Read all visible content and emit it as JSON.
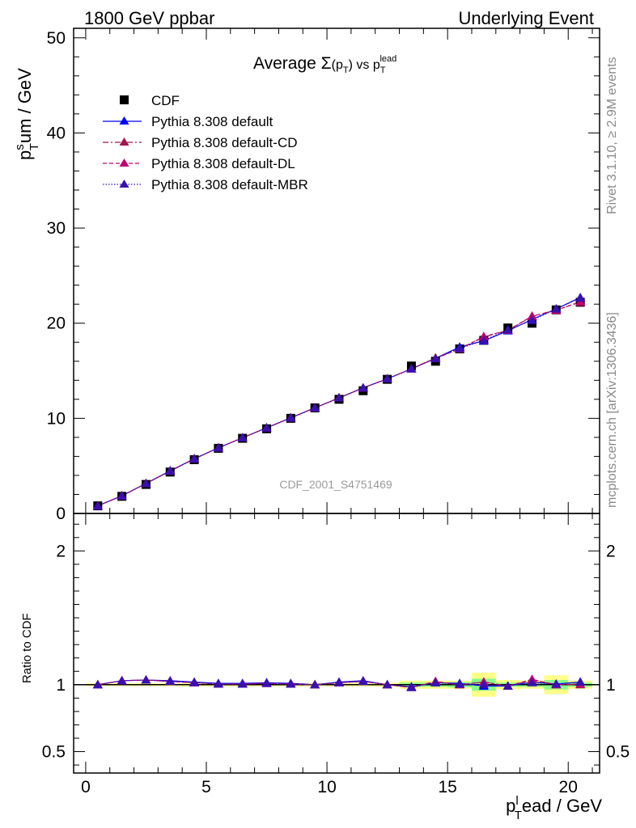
{
  "header": {
    "left": "1800 GeV ppbar",
    "right": "Underlying Event"
  },
  "side_labels": {
    "rivet": "Rivet 3.1.10, ≥ 2.9M events",
    "mcplots": "mcplots.cern.ch [arXiv:1306.3436]"
  },
  "watermark": "CDF_2001_S4751469",
  "colors": {
    "cdf": "#000000",
    "default": "#0000ff",
    "cd": "#a0164e",
    "dl": "#c0006f",
    "mbr": "#3a10b0",
    "band_green": "#88ff88",
    "band_yellow": "#ffff88"
  },
  "chart_data": [
    {
      "type": "scatter",
      "title": {
        "pre": "Average ",
        "sym": "Σ",
        "open": "(p",
        "sub1": "T",
        "close": ")",
        "mid": " vs p",
        "sub2": "T",
        "sup2": "lead"
      },
      "ylabel": {
        "main": "p",
        "sup": "s",
        "sub": "T",
        "rest": "um / GeV"
      },
      "xlim": [
        -0.5,
        21.3
      ],
      "ylim": [
        0,
        51
      ],
      "yticks": [
        0,
        10,
        20,
        30,
        40,
        50
      ],
      "ytick_labels": [
        "0",
        "10",
        "20",
        "30",
        "40",
        "50"
      ],
      "legend_position": "top-left",
      "x": [
        0.5,
        1.5,
        2.5,
        3.5,
        4.5,
        5.5,
        6.5,
        7.5,
        8.5,
        9.5,
        10.5,
        11.5,
        12.5,
        13.5,
        14.5,
        15.5,
        16.5,
        17.5,
        18.5,
        19.5,
        20.5
      ],
      "series": [
        {
          "name": "CDF",
          "marker": "square",
          "values": [
            0.8,
            1.8,
            3.05,
            4.35,
            5.65,
            6.85,
            7.9,
            8.9,
            10.0,
            11.1,
            12.0,
            12.9,
            14.1,
            15.5,
            16.0,
            17.3,
            18.2,
            19.5,
            20.0,
            21.4,
            22.2
          ]
        },
        {
          "name": "Pythia 8.308 default",
          "marker": "triangle",
          "line": "solid",
          "values": [
            0.8,
            1.85,
            3.15,
            4.5,
            5.75,
            6.9,
            7.95,
            9.0,
            10.05,
            11.1,
            12.15,
            13.2,
            14.15,
            15.2,
            16.3,
            17.5,
            18.15,
            19.2,
            20.4,
            21.5,
            22.7
          ]
        },
        {
          "name": "Pythia 8.308 default-CD",
          "marker": "triangle",
          "line": "dashdot",
          "values": [
            0.8,
            1.85,
            3.15,
            4.45,
            5.75,
            6.9,
            7.95,
            9.0,
            10.05,
            11.1,
            12.15,
            13.2,
            14.15,
            15.2,
            16.35,
            17.3,
            18.55,
            19.25,
            20.7,
            21.4,
            22.2
          ]
        },
        {
          "name": "Pythia 8.308 default-DL",
          "marker": "triangle",
          "line": "dashed",
          "values": [
            0.8,
            1.85,
            3.15,
            4.45,
            5.75,
            6.9,
            7.95,
            9.0,
            10.05,
            11.1,
            12.15,
            13.2,
            14.15,
            15.2,
            16.3,
            17.3,
            18.6,
            19.25,
            20.75,
            21.35,
            22.25
          ]
        },
        {
          "name": "Pythia 8.308 default-MBR",
          "marker": "triangle",
          "line": "dotted",
          "values": [
            0.8,
            1.85,
            3.15,
            4.45,
            5.75,
            6.9,
            7.95,
            9.0,
            10.05,
            11.1,
            12.15,
            13.2,
            14.15,
            15.2,
            16.3,
            17.35,
            18.2,
            19.3,
            20.3,
            21.5,
            22.65
          ]
        }
      ]
    },
    {
      "type": "scatter",
      "ylabel": "Ratio to CDF",
      "xlabel": {
        "main": "p",
        "sup": "l",
        "sub": "T",
        "rest": "ead / GeV"
      },
      "xlim": [
        -0.5,
        21.3
      ],
      "ylim": [
        0.34,
        2.28
      ],
      "yticks": [
        0.5,
        1,
        2
      ],
      "ytick_labels": [
        "0.5",
        "1",
        "2"
      ],
      "xticks": [
        0,
        5,
        10,
        15,
        20
      ],
      "xtick_labels": [
        "0",
        "5",
        "10",
        "15",
        "20"
      ],
      "x": [
        0.5,
        1.5,
        2.5,
        3.5,
        4.5,
        5.5,
        6.5,
        7.5,
        8.5,
        9.5,
        10.5,
        11.5,
        12.5,
        13.5,
        14.5,
        15.5,
        16.5,
        17.5,
        18.5,
        19.5,
        20.5
      ],
      "band": {
        "green": [
          0.004,
          0.004,
          0.004,
          0.004,
          0.004,
          0.004,
          0.004,
          0.004,
          0.004,
          0.004,
          0.004,
          0.004,
          0.004,
          0.015,
          0.015,
          0.02,
          0.045,
          0.015,
          0.015,
          0.035,
          0.015
        ],
        "yellow": [
          0.01,
          0.01,
          0.01,
          0.01,
          0.012,
          0.012,
          0.012,
          0.012,
          0.012,
          0.012,
          0.012,
          0.012,
          0.015,
          0.03,
          0.03,
          0.03,
          0.09,
          0.035,
          0.03,
          0.07,
          0.03
        ]
      },
      "series": [
        {
          "name": "Pythia 8.308 default",
          "values": [
            1.0,
            1.03,
            1.035,
            1.03,
            1.02,
            1.01,
            1.01,
            1.015,
            1.01,
            1.0,
            1.02,
            1.03,
            1.0,
            0.985,
            1.015,
            1.01,
            0.99,
            0.99,
            1.02,
            1.005,
            1.02
          ]
        },
        {
          "name": "Pythia 8.308 default-CD",
          "values": [
            1.0,
            1.03,
            1.035,
            1.025,
            1.015,
            1.005,
            1.005,
            1.01,
            1.005,
            1.0,
            1.015,
            1.025,
            1.0,
            0.98,
            1.02,
            1.0,
            1.02,
            0.99,
            1.035,
            1.0,
            1.0
          ]
        },
        {
          "name": "Pythia 8.308 default-DL",
          "values": [
            1.0,
            1.03,
            1.035,
            1.025,
            1.015,
            1.005,
            1.005,
            1.01,
            1.005,
            1.0,
            1.015,
            1.025,
            1.0,
            0.98,
            1.025,
            1.0,
            1.02,
            0.99,
            1.04,
            1.0,
            1.005
          ]
        },
        {
          "name": "Pythia 8.308 default-MBR",
          "values": [
            1.0,
            1.03,
            1.035,
            1.025,
            1.015,
            1.005,
            1.005,
            1.01,
            1.005,
            1.0,
            1.015,
            1.025,
            1.0,
            0.98,
            1.015,
            1.005,
            1.0,
            0.99,
            1.015,
            1.005,
            1.02
          ]
        }
      ]
    }
  ]
}
